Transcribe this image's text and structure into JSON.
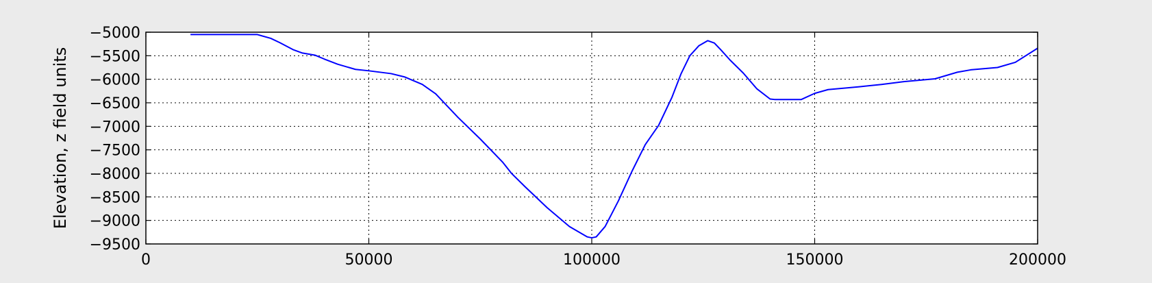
{
  "chart_data": {
    "type": "line",
    "title": "",
    "xlabel": "",
    "ylabel": "Elevation, z field units",
    "xlim": [
      0,
      200000
    ],
    "ylim": [
      -9500,
      -5000
    ],
    "x_ticks": [
      0,
      50000,
      100000,
      150000,
      200000
    ],
    "x_tick_labels": [
      "0",
      "50000",
      "100000",
      "150000",
      "200000"
    ],
    "y_ticks": [
      -5000,
      -5500,
      -6000,
      -6500,
      -7000,
      -7500,
      -8000,
      -8500,
      -9000,
      -9500
    ],
    "y_tick_labels": [
      "−5000",
      "−5500",
      "−6000",
      "−6500",
      "−7000",
      "−7500",
      "−8000",
      "−8500",
      "−9000",
      "−9500"
    ],
    "grid": true,
    "line_color": "#0000ff",
    "background_color": "#ebebeb",
    "plot_background": "#ffffff",
    "series": [
      {
        "x": [
          10000,
          15000,
          20000,
          25000,
          28000,
          30000,
          33000,
          35000,
          38000,
          40000,
          43000,
          47000,
          50000,
          55000,
          58000,
          62000,
          65000,
          70000,
          75000,
          80000,
          82000,
          85000,
          90000,
          95000,
          99000,
          100000,
          101000,
          103000,
          106000,
          109000,
          112000,
          115000,
          118000,
          120000,
          122000,
          124000,
          126000,
          127500,
          129000,
          131000,
          134000,
          137000,
          140000,
          141000,
          147000,
          150000,
          153000,
          160000,
          165000,
          170000,
          177000,
          182000,
          185000,
          191000,
          195000,
          200000
        ],
        "y": [
          -5050,
          -5050,
          -5050,
          -5050,
          -5130,
          -5220,
          -5370,
          -5440,
          -5490,
          -5570,
          -5680,
          -5790,
          -5820,
          -5880,
          -5950,
          -6110,
          -6310,
          -6810,
          -7270,
          -7760,
          -8000,
          -8280,
          -8730,
          -9130,
          -9350,
          -9370,
          -9350,
          -9130,
          -8580,
          -7960,
          -7390,
          -6980,
          -6380,
          -5890,
          -5500,
          -5290,
          -5180,
          -5230,
          -5380,
          -5590,
          -5870,
          -6200,
          -6420,
          -6430,
          -6430,
          -6300,
          -6220,
          -6160,
          -6110,
          -6050,
          -5990,
          -5850,
          -5800,
          -5750,
          -5640,
          -5340
        ]
      }
    ]
  }
}
